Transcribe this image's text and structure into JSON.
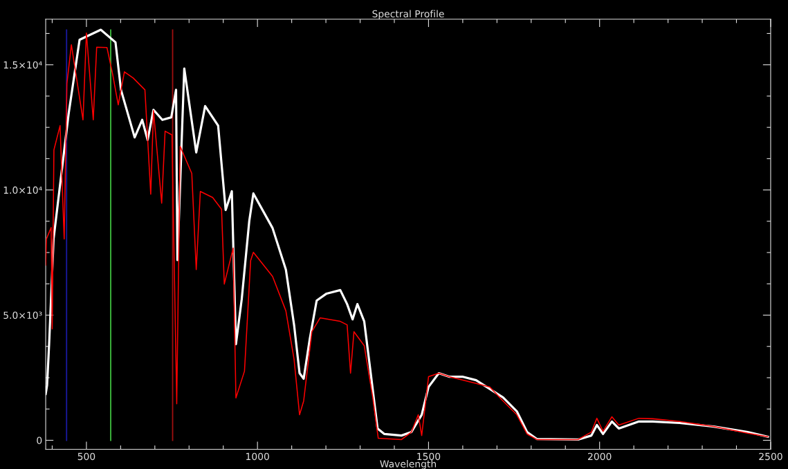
{
  "chart_data": {
    "type": "line",
    "title": "Spectral Profile",
    "xlabel": "Wavelength",
    "xlim": [
      381,
      2500
    ],
    "ylim": [
      -360,
      16820
    ],
    "xticks": [
      {
        "value": 400,
        "label": null
      },
      500,
      {
        "value": 600,
        "label": null
      },
      {
        "value": 700,
        "label": null
      },
      {
        "value": 800,
        "label": null
      },
      {
        "value": 900,
        "label": null
      },
      1000,
      {
        "value": 1100,
        "label": null
      },
      {
        "value": 1200,
        "label": null
      },
      {
        "value": 1300,
        "label": null
      },
      {
        "value": 1400,
        "label": null
      },
      1500,
      {
        "value": 1600,
        "label": null
      },
      {
        "value": 1700,
        "label": null
      },
      {
        "value": 1800,
        "label": null
      },
      {
        "value": 1900,
        "label": null
      },
      2000,
      {
        "value": 2100,
        "label": null
      },
      {
        "value": 2200,
        "label": null
      },
      {
        "value": 2300,
        "label": null
      },
      {
        "value": 2400,
        "label": null
      },
      2500
    ],
    "yticks": [
      0,
      {
        "value": 1250,
        "label": null
      },
      {
        "value": 2500,
        "label": null
      },
      {
        "value": 3750,
        "label": null
      },
      {
        "value": 5000,
        "label": "5.0×10³"
      },
      {
        "value": 6250,
        "label": null
      },
      {
        "value": 7500,
        "label": null
      },
      {
        "value": 8750,
        "label": null
      },
      {
        "value": 10000,
        "label": "1.0×10⁴"
      },
      {
        "value": 11250,
        "label": null
      },
      {
        "value": 12500,
        "label": null
      },
      {
        "value": 13750,
        "label": null
      },
      {
        "value": 15000,
        "label": "1.5×10⁴"
      },
      {
        "value": 16250,
        "label": null
      }
    ],
    "grid": false,
    "marker": "none",
    "line_style": "solid",
    "series": [
      {
        "color": "#ffffff",
        "x": [
          381,
          385,
          391,
          404,
          427,
          448,
          480,
          542,
          585,
          601,
          641,
          663,
          679,
          696,
          722,
          748,
          762,
          766,
          786,
          821,
          847,
          885,
          907,
          925,
          937,
          954,
          976,
          988,
          1044,
          1083,
          1107,
          1123,
          1135,
          1153,
          1173,
          1202,
          1242,
          1262,
          1278,
          1292,
          1312,
          1331,
          1351,
          1371,
          1421,
          1450,
          1480,
          1500,
          1530,
          1560,
          1599,
          1639,
          1718,
          1758,
          1788,
          1817,
          1937,
          1976,
          1992,
          2010,
          2036,
          2056,
          2115,
          2155,
          2234,
          2333,
          2433,
          2492
        ],
        "values": [
          1850,
          2200,
          3840,
          8040,
          10660,
          13040,
          16000,
          16400,
          15900,
          14000,
          12100,
          12800,
          12000,
          13200,
          12800,
          12900,
          14000,
          7200,
          14850,
          11500,
          13350,
          12570,
          9200,
          9950,
          3840,
          5640,
          8760,
          9860,
          8480,
          6820,
          4610,
          2680,
          2460,
          4060,
          5580,
          5860,
          6000,
          5440,
          4830,
          5440,
          4750,
          2680,
          470,
          250,
          190,
          330,
          1020,
          2130,
          2680,
          2540,
          2540,
          2400,
          1710,
          1160,
          330,
          50,
          30,
          190,
          610,
          250,
          750,
          470,
          750,
          750,
          690,
          550,
          330,
          140
        ]
      },
      {
        "color": "#ff0000",
        "x": [
          381,
          383,
          397,
          400,
          405,
          423,
          435,
          443,
          456,
          490,
          500,
          520,
          530,
          560,
          577,
          593,
          611,
          637,
          671,
          688,
          696,
          720,
          730,
          750,
          764,
          774,
          808,
          821,
          833,
          869,
          895,
          903,
          929,
          937,
          962,
          980,
          988,
          1044,
          1083,
          1107,
          1123,
          1135,
          1159,
          1183,
          1242,
          1262,
          1272,
          1282,
          1312,
          1337,
          1353,
          1421,
          1450,
          1470,
          1480,
          1500,
          1530,
          1560,
          1639,
          1679,
          1718,
          1758,
          1788,
          1817,
          1937,
          1976,
          1992,
          2010,
          2036,
          2056,
          2115,
          2155,
          2234,
          2333,
          2433,
          2492
        ],
        "values": [
          7000,
          8040,
          8500,
          4450,
          11600,
          12570,
          8040,
          14250,
          15800,
          12800,
          16270,
          12800,
          15700,
          15690,
          14600,
          13400,
          14720,
          14470,
          14000,
          9830,
          13170,
          9470,
          12350,
          12200,
          1460,
          11740,
          10660,
          6820,
          9940,
          9700,
          9230,
          6240,
          7680,
          1690,
          2760,
          7180,
          7510,
          6550,
          5170,
          3230,
          1020,
          1570,
          4340,
          4890,
          4750,
          4610,
          2680,
          4340,
          3780,
          1710,
          80,
          30,
          330,
          1020,
          190,
          2540,
          2680,
          2540,
          2270,
          2130,
          1570,
          1020,
          250,
          30,
          30,
          330,
          880,
          360,
          940,
          610,
          880,
          860,
          750,
          550,
          280,
          140
        ]
      }
    ],
    "ref_lines": [
      {
        "axis": "x",
        "value": 442,
        "color": "#1a1aa0"
      },
      {
        "axis": "x",
        "value": 571,
        "color": "#40c040"
      },
      {
        "axis": "x",
        "value": 752,
        "color": "#a01010"
      }
    ]
  }
}
